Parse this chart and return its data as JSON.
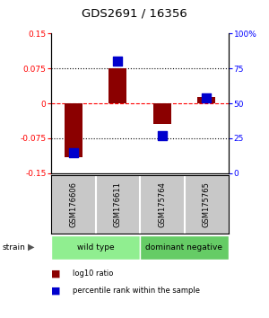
{
  "title": "GDS2691 / 16356",
  "samples": [
    "GSM176606",
    "GSM176611",
    "GSM175764",
    "GSM175765"
  ],
  "log10_ratios": [
    -0.115,
    0.075,
    -0.045,
    0.013
  ],
  "percentile_ranks": [
    15,
    80,
    27,
    54
  ],
  "groups": [
    {
      "label": "wild type",
      "samples": [
        0,
        1
      ],
      "color": "#90EE90"
    },
    {
      "label": "dominant negative",
      "samples": [
        2,
        3
      ],
      "color": "#66CC66"
    }
  ],
  "ylim_left": [
    -0.15,
    0.15
  ],
  "ylim_right": [
    0,
    100
  ],
  "yticks_left": [
    -0.15,
    -0.075,
    0,
    0.075,
    0.15
  ],
  "ytick_labels_left": [
    "-0.15",
    "-0.075",
    "0",
    "0.075",
    "0.15"
  ],
  "yticks_right": [
    0,
    25,
    50,
    75,
    100
  ],
  "ytick_labels_right": [
    "0",
    "25",
    "50",
    "75",
    "100%"
  ],
  "hlines": [
    -0.075,
    0,
    0.075
  ],
  "bar_color": "#8B0000",
  "dot_color": "#0000CD",
  "bar_width": 0.4,
  "dot_size": 45,
  "strain_label": "strain",
  "arrow": "▶",
  "legend_items": [
    {
      "color": "#8B0000",
      "label": "log10 ratio"
    },
    {
      "color": "#0000CD",
      "label": "percentile rank within the sample"
    }
  ],
  "sample_box_color": "#c8c8c8",
  "fig_bg": "#ffffff"
}
